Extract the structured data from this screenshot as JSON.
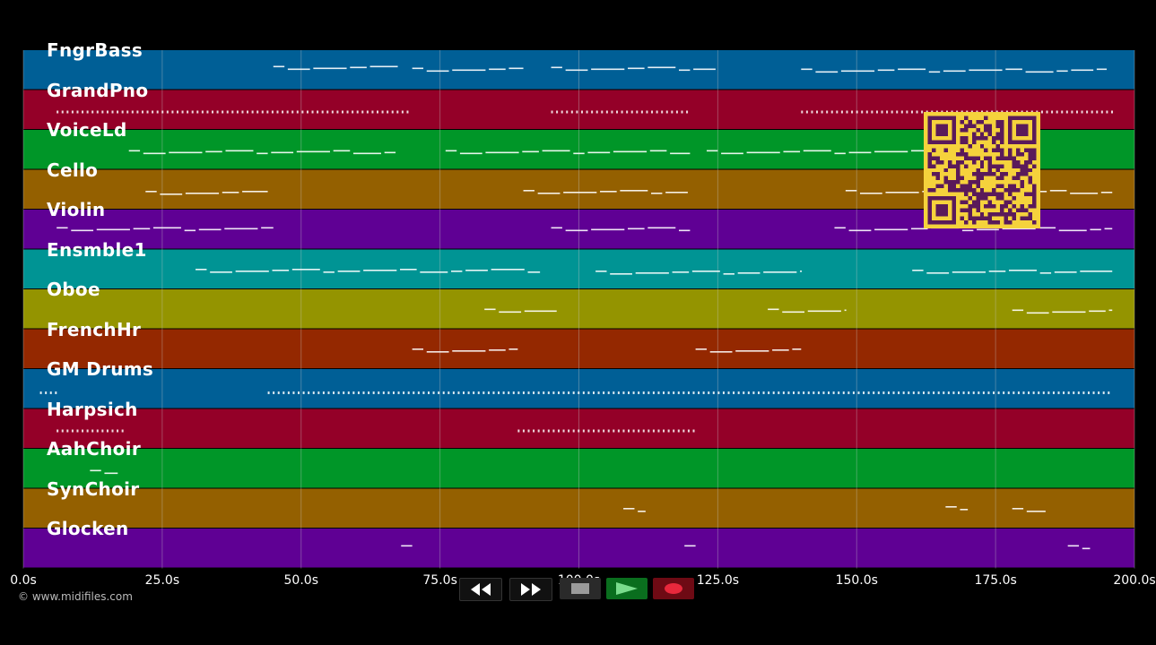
{
  "app": {
    "copyright": "© www.midifiles.com"
  },
  "tracks": [
    {
      "name": "FngrBass",
      "color": "#005f96"
    },
    {
      "name": "GrandPno",
      "color": "#940028"
    },
    {
      "name": "VoiceLd",
      "color": "#009628"
    },
    {
      "name": "Cello",
      "color": "#946000"
    },
    {
      "name": "Violin",
      "color": "#5f0094"
    },
    {
      "name": "Ensmble1",
      "color": "#009494"
    },
    {
      "name": "Oboe",
      "color": "#949400"
    },
    {
      "name": "FrenchHr",
      "color": "#942800"
    },
    {
      "name": "GM Drums",
      "color": "#005f96"
    },
    {
      "name": "Harpsich",
      "color": "#940028"
    },
    {
      "name": "AahChoir",
      "color": "#009628"
    },
    {
      "name": "SynChoir",
      "color": "#946000"
    },
    {
      "name": "Glocken",
      "color": "#5f0094"
    }
  ],
  "time_axis": {
    "ticks": [
      "0.0s",
      "25.0s",
      "50.0s",
      "75.0s",
      "100.0s",
      "125.0s",
      "150.0s",
      "175.0s",
      "200.0s"
    ],
    "tick_values": [
      0,
      25,
      50,
      75,
      100,
      125,
      150,
      175,
      200
    ]
  },
  "transport": {
    "rewind": "rewind-icon",
    "fast_forward": "fast-forward-icon",
    "stop": "stop-icon",
    "play": "play-icon",
    "record": "record-icon",
    "colors": {
      "play_bg": "#0a6e1e",
      "record_bg": "#6e0a14",
      "record_dot": "#e8283c",
      "stop_square": "#9a9a9a"
    }
  },
  "qr_code": {
    "fg": "#5a1a5a",
    "bg": "#f5d23c"
  }
}
